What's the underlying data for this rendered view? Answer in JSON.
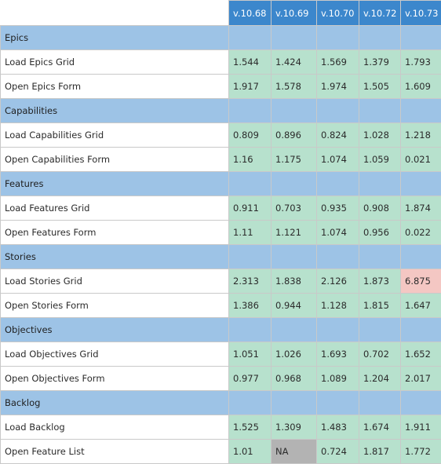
{
  "versions": [
    "v.10.68",
    "v.10.69",
    "v.10.70",
    "v.10.72",
    "v.10.73"
  ],
  "sections": [
    {
      "name": "Epics",
      "rows": [
        {
          "label": "Load Epics Grid",
          "values": [
            "1.544",
            "1.424",
            "1.569",
            "1.379",
            "1.793"
          ]
        },
        {
          "label": "Open Epics Form",
          "values": [
            "1.917",
            "1.578",
            "1.974",
            "1.505",
            "1.609"
          ]
        }
      ]
    },
    {
      "name": "Capabilities",
      "rows": [
        {
          "label": "Load Capabilities Grid",
          "values": [
            "0.809",
            "0.896",
            "0.824",
            "1.028",
            "1.218"
          ]
        },
        {
          "label": "Open Capabilities Form",
          "values": [
            "1.16",
            "1.175",
            "1.074",
            "1.059",
            "0.021"
          ]
        }
      ]
    },
    {
      "name": "Features",
      "rows": [
        {
          "label": "Load Features Grid",
          "values": [
            "0.911",
            "0.703",
            "0.935",
            "0.908",
            "1.874"
          ]
        },
        {
          "label": "Open Features Form",
          "values": [
            "1.11",
            "1.121",
            "1.074",
            "0.956",
            "0.022"
          ]
        }
      ]
    },
    {
      "name": "Stories",
      "rows": [
        {
          "label": "Load Stories Grid",
          "values": [
            "2.313",
            "1.838",
            "2.126",
            "1.873",
            "6.875"
          ]
        },
        {
          "label": "Open Stories Form",
          "values": [
            "1.386",
            "0.944",
            "1.128",
            "1.815",
            "1.647"
          ]
        }
      ]
    },
    {
      "name": "Objectives",
      "rows": [
        {
          "label": "Load Objectives Grid",
          "values": [
            "1.051",
            "1.026",
            "1.693",
            "0.702",
            "1.652"
          ]
        },
        {
          "label": "Open Objectives Form",
          "values": [
            "0.977",
            "0.968",
            "1.089",
            "1.204",
            "2.017"
          ]
        }
      ]
    },
    {
      "name": "Backlog",
      "rows": [
        {
          "label": "Load Backlog",
          "values": [
            "1.525",
            "1.309",
            "1.483",
            "1.674",
            "1.911"
          ]
        },
        {
          "label": "Open Feature List",
          "values": [
            "1.01",
            "NA",
            "0.724",
            "1.817",
            "1.772"
          ]
        }
      ]
    }
  ],
  "cell_status": {
    "Load Stories Grid": [
      "ok",
      "ok",
      "ok",
      "ok",
      "bad"
    ],
    "Open Feature List": [
      "ok",
      "na",
      "ok",
      "ok",
      "ok"
    ]
  },
  "colors": {
    "header": "#3c87cc",
    "section": "#9dc3e6",
    "ok": "#b7e1cd",
    "bad": "#f4c7c3",
    "na": "#b3b3b3"
  }
}
